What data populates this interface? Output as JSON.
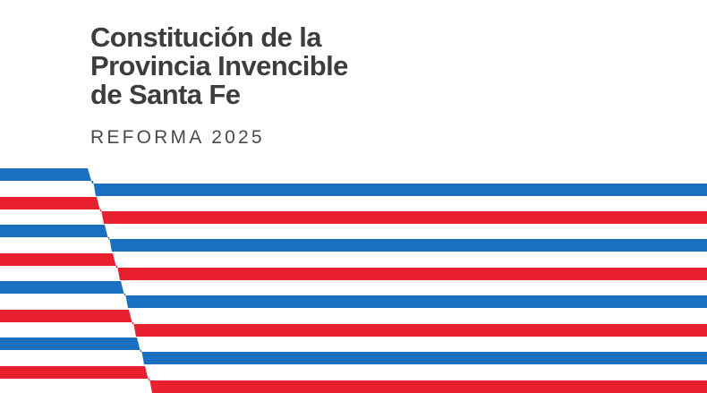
{
  "document": {
    "title_lines": [
      "Constitución de la",
      "Provincia Invencible",
      "de Santa Fe"
    ],
    "subtitle": "REFORMA 2025"
  },
  "colors": {
    "blue": "#1b6fc0",
    "red": "#e8202f",
    "text": "#3d3d3d",
    "background": "#ffffff"
  },
  "stripes": {
    "pattern": [
      "blue",
      "red",
      "blue",
      "red",
      "blue",
      "red",
      "blue",
      "red"
    ]
  }
}
